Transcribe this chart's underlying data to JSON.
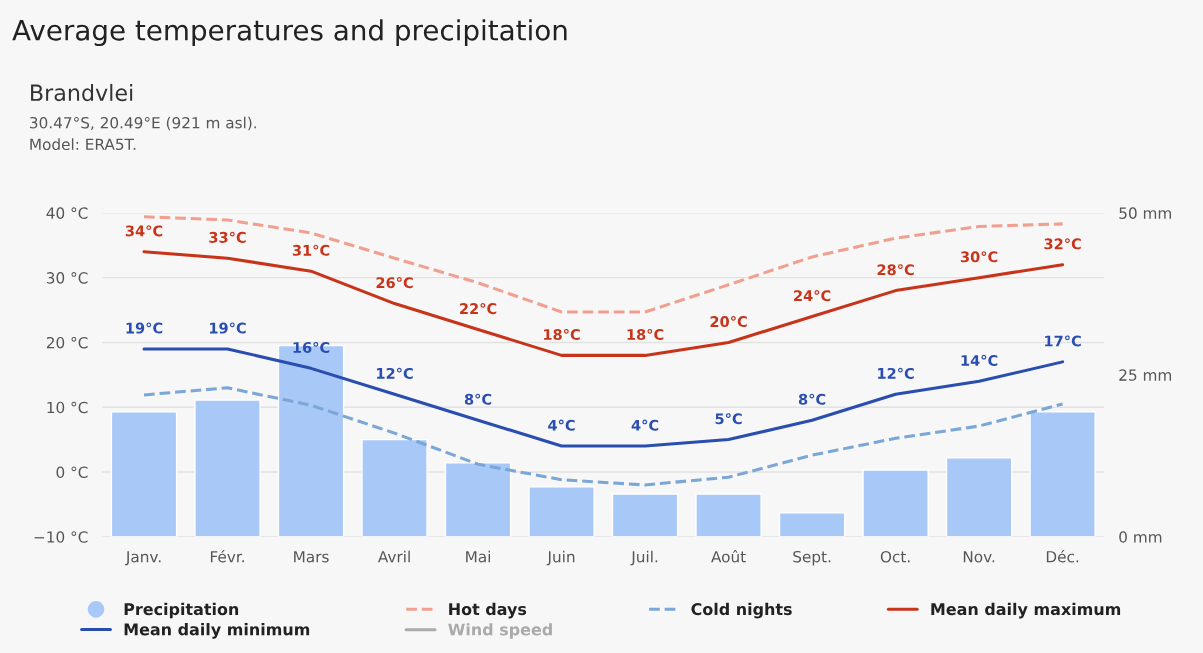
{
  "chart_data": {
    "type": "line",
    "title": "Average temperatures and precipitation",
    "subtitle": "Brandvlei",
    "annotations": [
      "30.47°S, 20.49°E (921 m asl).",
      "Model: ERA5T."
    ],
    "categories": [
      "Janv.",
      "Févr.",
      "Mars",
      "Avril",
      "Mai",
      "Juin",
      "Juil.",
      "Août",
      "Sept.",
      "Oct.",
      "Nov.",
      "Déc."
    ],
    "series": [
      {
        "name": "Precipitation",
        "type": "bar",
        "axis": "y2",
        "color": "#a8c8f8",
        "values": [
          19.3,
          21.1,
          29.5,
          15,
          11.4,
          7.7,
          6.6,
          6.6,
          3.7,
          10.3,
          12.2,
          19.3
        ]
      },
      {
        "name": "Hot days",
        "line_style": "dashed",
        "color": "#f0a090",
        "values": [
          39.4,
          38.9,
          36.9,
          33,
          29.2,
          24.7,
          24.7,
          28.9,
          33.2,
          36.1,
          37.9,
          38.3
        ]
      },
      {
        "name": "Cold nights",
        "line_style": "dashed",
        "color": "#7aa6d8",
        "values": [
          11.9,
          13,
          10.3,
          6,
          1.2,
          -1.2,
          -2,
          -0.8,
          2.6,
          5.2,
          7.1,
          10.5
        ]
      },
      {
        "name": "Mean daily maximum",
        "line_style": "solid",
        "color": "#c8341a",
        "values": [
          34,
          33,
          31,
          26,
          22,
          18,
          18,
          20,
          24,
          28,
          30,
          32
        ],
        "value_labels": [
          "34°C",
          "33°C",
          "31°C",
          "26°C",
          "22°C",
          "18°C",
          "18°C",
          "20°C",
          "24°C",
          "28°C",
          "30°C",
          "32°C"
        ]
      },
      {
        "name": "Mean daily minimum",
        "line_style": "solid",
        "color": "#2a4db0",
        "values": [
          19,
          19,
          16,
          12,
          8,
          4,
          4,
          5,
          8,
          12,
          14,
          17
        ],
        "value_labels": [
          "19°C",
          "19°C",
          "16°C",
          "12°C",
          "8°C",
          "4°C",
          "4°C",
          "5°C",
          "8°C",
          "12°C",
          "14°C",
          "17°C"
        ]
      },
      {
        "name": "Wind speed",
        "line_style": "solid",
        "color": "#aaaaaa",
        "values": [
          null,
          null,
          null,
          null,
          null,
          null,
          null,
          null,
          null,
          null,
          null,
          null
        ]
      }
    ],
    "ylim": [
      -10,
      40
    ],
    "yticks": [
      {
        "value": -10,
        "label": "−10 °C"
      },
      {
        "value": 0,
        "label": "0 °C"
      },
      {
        "value": 10,
        "label": "10 °C"
      },
      {
        "value": 20,
        "label": "20 °C"
      },
      {
        "value": 30,
        "label": "30 °C"
      },
      {
        "value": 40,
        "label": "40 °C"
      }
    ],
    "y2lim": [
      0,
      50
    ],
    "y2ticks": [
      {
        "value": 0,
        "label": "0 mm"
      },
      {
        "value": 25,
        "label": "25 mm"
      },
      {
        "value": 50,
        "label": "50 mm"
      }
    ],
    "grid": "y",
    "legend": "bottom"
  }
}
